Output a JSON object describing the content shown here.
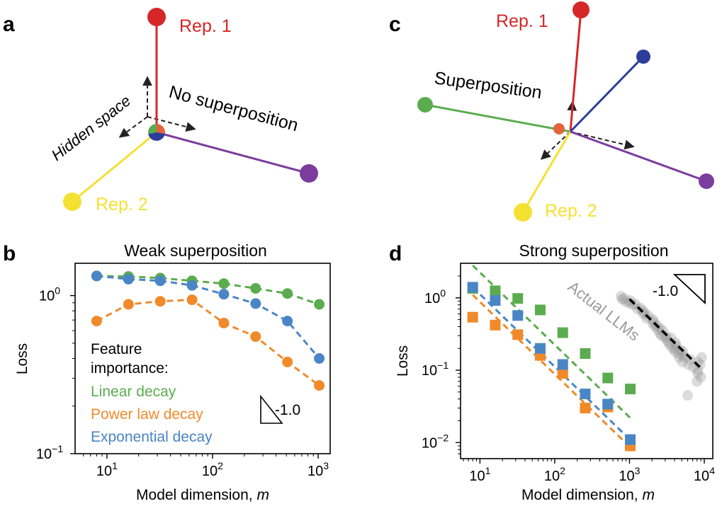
{
  "panel_a": {
    "label": "a",
    "rep1": "Rep. 1",
    "rep2": "Rep. 2",
    "hidden_space": "Hidden space",
    "no_superposition": "No superposition"
  },
  "panel_c": {
    "label": "c",
    "rep1": "Rep. 1",
    "rep2": "Rep. 2",
    "superposition": "Superposition"
  },
  "colors": {
    "red": "#d62728",
    "yellow": "#f5e132",
    "purple": "#7b3c9e",
    "green": "#5aac4e",
    "blue": "#2c3e9a",
    "orange": "#e3643c",
    "linear": "#5aac4e",
    "power": "#f08a2a",
    "exponential": "#4a86c5",
    "llm": "#9a9a9a"
  },
  "chart_data": [
    {
      "id": "b",
      "panel_label": "b",
      "type": "line",
      "title": "Weak superposition",
      "xlabel": "Model dimension, ",
      "xlabel_var": "m",
      "ylabel": "Loss",
      "xscale": "log",
      "yscale": "log",
      "xlim": [
        5,
        1300
      ],
      "ylim": [
        0.1,
        1.6
      ],
      "xticks": [
        {
          "value": 10,
          "base": "10",
          "exp": "1"
        },
        {
          "value": 100,
          "base": "10",
          "exp": "2"
        },
        {
          "value": 1000,
          "base": "10",
          "exp": "3"
        }
      ],
      "yticks": [
        {
          "value": 1,
          "base": "10",
          "exp": "0"
        },
        {
          "value": 0.1,
          "base": "10",
          "exp": "−1"
        }
      ],
      "legend_title": [
        "Feature",
        "importance:"
      ],
      "series": [
        {
          "name": "Linear decay",
          "marker": "circle",
          "x": [
            8,
            16,
            32,
            64,
            128,
            256,
            512,
            1024
          ],
          "values": [
            1.33,
            1.32,
            1.29,
            1.24,
            1.19,
            1.11,
            1.03,
            0.88
          ]
        },
        {
          "name": "Power law decay",
          "marker": "circle",
          "x": [
            8,
            16,
            32,
            64,
            128,
            256,
            512,
            1024
          ],
          "values": [
            0.69,
            0.88,
            0.92,
            0.94,
            0.67,
            0.55,
            0.38,
            0.27
          ]
        },
        {
          "name": "Exponential decay",
          "marker": "circle",
          "x": [
            8,
            16,
            32,
            64,
            128,
            256,
            512,
            1024
          ],
          "values": [
            1.33,
            1.27,
            1.24,
            1.16,
            1.02,
            0.89,
            0.69,
            0.4
          ]
        }
      ],
      "slope_label": "-1.0"
    },
    {
      "id": "d",
      "panel_label": "d",
      "type": "scatter",
      "title": "Strong superposition",
      "xlabel": "Model dimension, ",
      "xlabel_var": "m",
      "ylabel": "Loss",
      "xscale": "log",
      "yscale": "log",
      "xlim": [
        5.5,
        13000
      ],
      "ylim": [
        0.006,
        3
      ],
      "xticks": [
        {
          "value": 10,
          "base": "10",
          "exp": "1"
        },
        {
          "value": 100,
          "base": "10",
          "exp": "2"
        },
        {
          "value": 1000,
          "base": "10",
          "exp": "3"
        },
        {
          "value": 10000,
          "base": "10",
          "exp": "4"
        }
      ],
      "yticks": [
        {
          "value": 1,
          "base": "10",
          "exp": "0"
        },
        {
          "value": 0.1,
          "base": "10",
          "exp": "−1"
        },
        {
          "value": 0.01,
          "base": "10",
          "exp": "−2"
        }
      ],
      "series": [
        {
          "name": "Linear decay",
          "marker": "square",
          "x": [
            8,
            16,
            32,
            64,
            128,
            256,
            512,
            1024
          ],
          "values": [
            1.35,
            1.25,
            0.98,
            0.68,
            0.33,
            0.17,
            0.078,
            0.055
          ],
          "fit": {
            "x": [
              8,
              1024
            ],
            "y": [
              2.8,
              0.0219
            ]
          }
        },
        {
          "name": "Power law decay",
          "marker": "square",
          "x": [
            8,
            16,
            32,
            64,
            128,
            256,
            512,
            1024
          ],
          "values": [
            0.54,
            0.42,
            0.31,
            0.16,
            0.09,
            0.03,
            0.031,
            0.009
          ],
          "fit": {
            "x": [
              8,
              1024
            ],
            "y": [
              1.1,
              0.0086
            ]
          }
        },
        {
          "name": "Exponential decay",
          "marker": "square",
          "x": [
            8,
            16,
            32,
            64,
            128,
            256,
            512,
            1024
          ],
          "values": [
            1.4,
            0.92,
            0.57,
            0.2,
            0.12,
            0.047,
            0.034,
            0.011
          ],
          "fit": {
            "x": [
              8,
              1024
            ],
            "y": [
              1.4,
              0.0109
            ]
          }
        }
      ],
      "llm": {
        "label": "Actual LLMs",
        "x": [
          768,
          800,
          850,
          900,
          1000,
          1024,
          1100,
          1200,
          1280,
          1400,
          1500,
          1536,
          1600,
          1700,
          1800,
          2048,
          2048,
          2100,
          2200,
          2304,
          2400,
          2560,
          2560,
          2700,
          2800,
          3000,
          3072,
          3200,
          3328,
          3500,
          3584,
          3800,
          4096,
          4096,
          4096,
          4200,
          4500,
          4608,
          4800,
          5120,
          5120,
          5200,
          5500,
          6144,
          6500,
          7168,
          8192,
          8192,
          8192,
          8800,
          9216,
          9000,
          8000,
          6000
        ],
        "values": [
          1.05,
          0.95,
          0.98,
          0.88,
          0.85,
          0.92,
          0.8,
          0.82,
          0.7,
          0.72,
          0.66,
          0.6,
          0.62,
          0.52,
          0.56,
          0.5,
          0.44,
          0.47,
          0.4,
          0.42,
          0.36,
          0.38,
          0.32,
          0.3,
          0.35,
          0.28,
          0.3,
          0.26,
          0.24,
          0.22,
          0.28,
          0.2,
          0.24,
          0.2,
          0.18,
          0.22,
          0.17,
          0.15,
          0.19,
          0.16,
          0.13,
          0.18,
          0.15,
          0.12,
          0.14,
          0.11,
          0.13,
          0.1,
          0.09,
          0.12,
          0.15,
          0.08,
          0.07,
          0.045
        ],
        "fit": {
          "x": [
            1000,
            9000
          ],
          "y": [
            0.96,
            0.107
          ]
        }
      },
      "slope_label": "-1.0"
    }
  ]
}
